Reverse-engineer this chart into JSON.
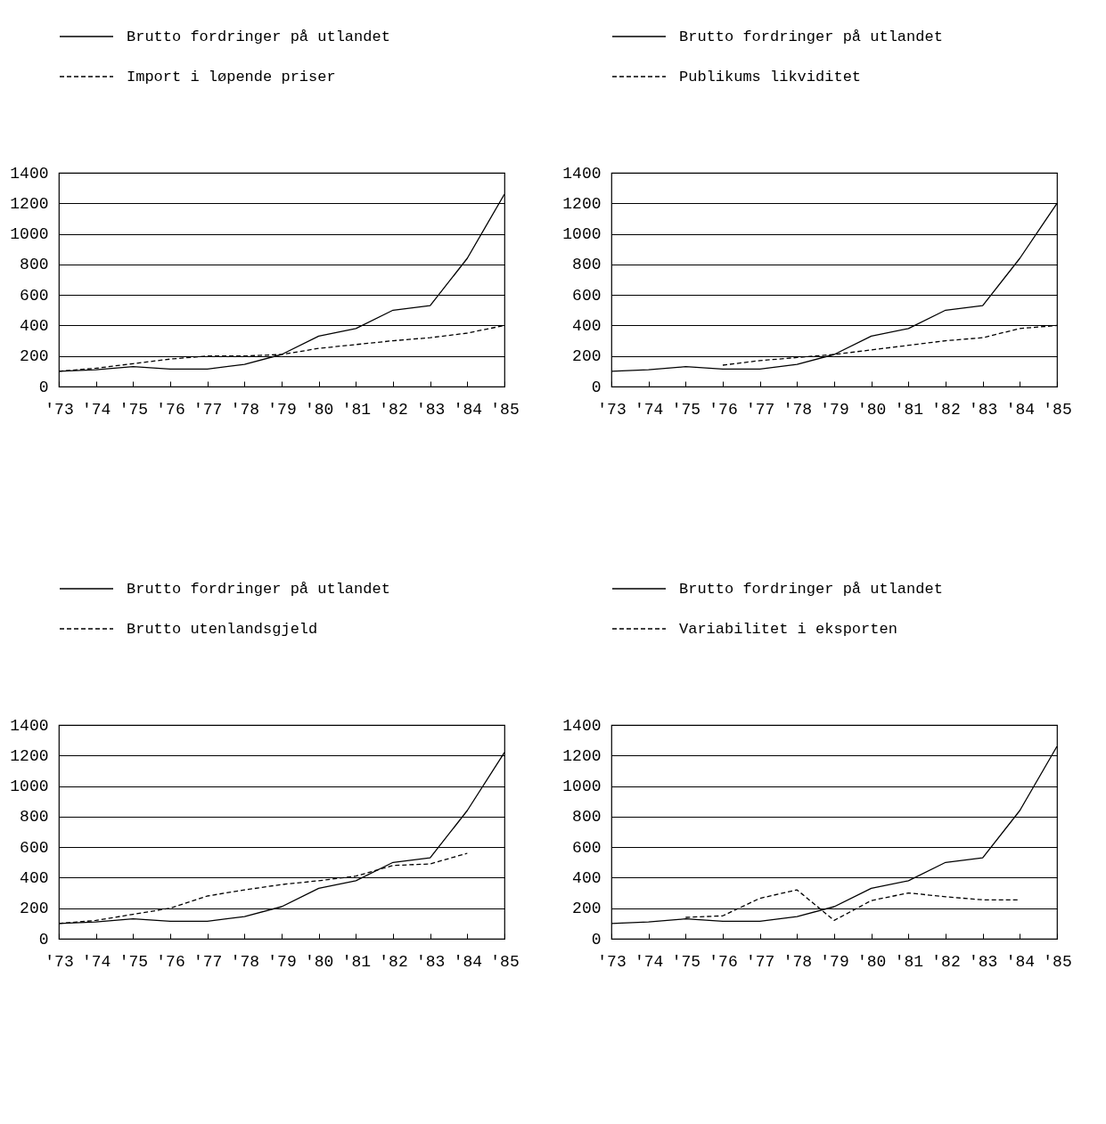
{
  "chart_data": [
    {
      "type": "line",
      "categories": [
        "'73",
        "'74",
        "'75",
        "'76",
        "'77",
        "'78",
        "'79",
        "'80",
        "'81",
        "'82",
        "'83",
        "'84",
        "'85"
      ],
      "ylim": [
        0,
        1400
      ],
      "yticks": [
        0,
        200,
        400,
        600,
        800,
        1000,
        1200,
        1400
      ],
      "grid": "y",
      "legend": "top left",
      "marker": "none",
      "series": [
        {
          "name": "Brutto fordringer på utlandet",
          "color": "#000000",
          "line_style": "solid",
          "values": [
            100,
            110,
            130,
            115,
            115,
            145,
            210,
            330,
            380,
            500,
            530,
            840,
            1260
          ]
        },
        {
          "name": "Import i løpende priser",
          "color": "#000000",
          "line_style": "dashed",
          "values": [
            100,
            120,
            150,
            180,
            200,
            200,
            210,
            250,
            275,
            300,
            320,
            350,
            400
          ]
        }
      ]
    },
    {
      "type": "line",
      "categories": [
        "'73",
        "'74",
        "'75",
        "'76",
        "'77",
        "'78",
        "'79",
        "'80",
        "'81",
        "'82",
        "'83",
        "'84",
        "'85"
      ],
      "ylim": [
        0,
        1400
      ],
      "yticks": [
        0,
        200,
        400,
        600,
        800,
        1000,
        1200,
        1400
      ],
      "grid": "y",
      "legend": "top left",
      "marker": "none",
      "series": [
        {
          "name": "Brutto fordringer på utlandet",
          "color": "#000000",
          "line_style": "solid",
          "values": [
            100,
            110,
            130,
            115,
            115,
            145,
            210,
            330,
            380,
            500,
            530,
            840,
            1200
          ]
        },
        {
          "name": "Publikums likviditet",
          "color": "#000000",
          "line_style": "dashed",
          "values": [
            null,
            null,
            null,
            140,
            170,
            190,
            210,
            240,
            270,
            300,
            320,
            380,
            400
          ]
        }
      ]
    },
    {
      "type": "line",
      "categories": [
        "'73",
        "'74",
        "'75",
        "'76",
        "'77",
        "'78",
        "'79",
        "'80",
        "'81",
        "'82",
        "'83",
        "'84",
        "'85"
      ],
      "ylim": [
        0,
        1400
      ],
      "yticks": [
        0,
        200,
        400,
        600,
        800,
        1000,
        1200,
        1400
      ],
      "grid": "y",
      "legend": "top left",
      "marker": "none",
      "series": [
        {
          "name": "Brutto fordringer på utlandet",
          "color": "#000000",
          "line_style": "solid",
          "values": [
            100,
            110,
            130,
            115,
            115,
            145,
            210,
            330,
            380,
            500,
            530,
            840,
            1220
          ]
        },
        {
          "name": "Brutto utenlandsgjeld",
          "color": "#000000",
          "line_style": "dashed",
          "values": [
            100,
            120,
            160,
            200,
            280,
            320,
            355,
            380,
            410,
            480,
            490,
            560,
            null
          ]
        }
      ]
    },
    {
      "type": "line",
      "categories": [
        "'73",
        "'74",
        "'75",
        "'76",
        "'77",
        "'78",
        "'79",
        "'80",
        "'81",
        "'82",
        "'83",
        "'84",
        "'85"
      ],
      "ylim": [
        0,
        1400
      ],
      "yticks": [
        0,
        200,
        400,
        600,
        800,
        1000,
        1200,
        1400
      ],
      "grid": "y",
      "legend": "top left",
      "marker": "none",
      "series": [
        {
          "name": "Brutto fordringer på utlandet",
          "color": "#000000",
          "line_style": "solid",
          "values": [
            100,
            110,
            130,
            115,
            115,
            145,
            210,
            330,
            380,
            500,
            530,
            840,
            1260
          ]
        },
        {
          "name": "Variabilitet i eksporten",
          "color": "#000000",
          "line_style": "dashed",
          "values": [
            null,
            null,
            140,
            150,
            265,
            320,
            120,
            250,
            300,
            275,
            255,
            255,
            null
          ]
        }
      ]
    }
  ]
}
